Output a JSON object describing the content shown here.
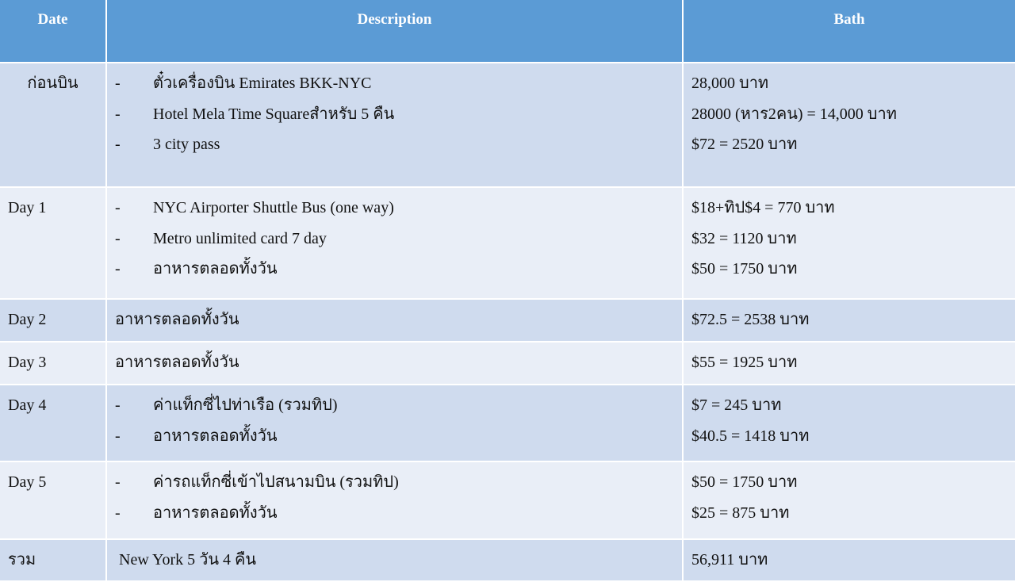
{
  "header": {
    "date": "Date",
    "description": "Description",
    "bath": "Bath"
  },
  "colors": {
    "header": "#5b9bd5",
    "row_dark": "#cfdbee",
    "row_light": "#e9eef7"
  },
  "rows": [
    {
      "date": "ก่อนบิน",
      "bullets": [
        "ตั๋วเครื่องบิน Emirates  BKK-NYC",
        "Hotel Mela Time Squareสำหรับ 5 คืน",
        "3 city pass"
      ],
      "bath": [
        "28,000 บาท",
        "28000 (หาร2คน)  = 14,000 บาท",
        "$72 = 2520 บาท"
      ]
    },
    {
      "date": "Day 1",
      "bullets": [
        "NYC Airporter Shuttle Bus (one way)",
        "Metro unlimited card 7 day",
        "อาหารตลอดทั้งวัน"
      ],
      "bath": [
        "$18+ทิป$4 = 770 บาท",
        "$32 = 1120 บาท",
        "$50 = 1750 บาท"
      ]
    },
    {
      "date": "Day 2",
      "text": "อาหารตลอดทั้งวัน",
      "bath": [
        "$72.5 = 2538 บาท"
      ]
    },
    {
      "date": "Day 3",
      "text": "อาหารตลอดทั้งวัน",
      "bath": [
        "$55 = 1925 บาท"
      ]
    },
    {
      "date": "Day 4",
      "bullets": [
        "ค่าแท็กซี่ไปท่าเรือ (รวมทิป)",
        "อาหารตลอดทั้งวัน"
      ],
      "bath": [
        "$7 = 245 บาท",
        "$40.5 = 1418 บาท"
      ]
    },
    {
      "date": "Day 5",
      "bullets": [
        "ค่ารถแท็กซี่เข้าไปสนามบิน (รวมทิป)",
        "อาหารตลอดทั้งวัน"
      ],
      "bath": [
        "$50 = 1750 บาท",
        "$25 = 875 บาท"
      ]
    },
    {
      "date": "รวม",
      "text": " New York 5 วัน 4 คืน",
      "bath": [
        "56,911 บาท"
      ]
    }
  ]
}
